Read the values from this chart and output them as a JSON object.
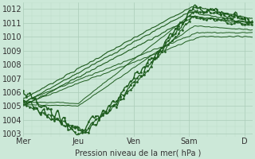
{
  "background_color": "#cce8d8",
  "grid_color_major": "#aaccb8",
  "grid_color_minor": "#bbddc8",
  "line_color": "#1e5c1e",
  "ylabel": "Pression niveau de la mer( hPa )",
  "ylim": [
    1002.8,
    1012.5
  ],
  "yticks": [
    1003,
    1004,
    1005,
    1006,
    1007,
    1008,
    1009,
    1010,
    1011,
    1012
  ],
  "xticklabels": [
    "Mer",
    "Jeu",
    "Ven",
    "Sam",
    "D"
  ],
  "xtick_positions": [
    0,
    1,
    2,
    3,
    4
  ],
  "xlabel_fontsize": 7,
  "tick_fontsize": 7,
  "figsize": [
    3.2,
    2.0
  ],
  "dpi": 100
}
